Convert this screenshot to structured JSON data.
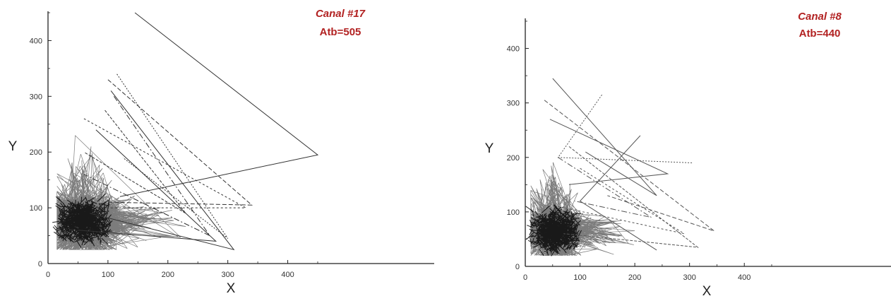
{
  "colors": {
    "annotation": "#b22222",
    "ink": "#111111"
  },
  "chart_data": [
    {
      "type": "line",
      "title": "Canal #17",
      "subtitle": "Atb=505",
      "xlabel": "X",
      "ylabel": "Y",
      "xlim": [
        0,
        450
      ],
      "ylim": [
        0,
        450
      ],
      "xticks": [
        "0",
        "100",
        "200",
        "300",
        "400"
      ],
      "yticks": [
        "0",
        "100",
        "200",
        "300",
        "400"
      ],
      "grid": false,
      "dense_cluster": {
        "x_range": [
          15,
          230
        ],
        "y_range": [
          25,
          270
        ],
        "center": [
          60,
          75
        ],
        "segments": 2600
      },
      "series": [
        {
          "x": [
            145,
            450,
            120
          ],
          "y": [
            450,
            195,
            120
          ]
        },
        {
          "x": [
            100,
            340,
            100
          ],
          "y": [
            330,
            105,
            110
          ]
        },
        {
          "x": [
            115,
            300,
            125
          ],
          "y": [
            340,
            45,
            190
          ]
        },
        {
          "x": [
            110,
            270,
            60
          ],
          "y": [
            300,
            50,
            160
          ]
        },
        {
          "x": [
            105,
            310,
            70
          ],
          "y": [
            310,
            25,
            90
          ]
        },
        {
          "x": [
            95,
            230,
            60
          ],
          "y": [
            275,
            90,
            200
          ]
        },
        {
          "x": [
            80,
            280,
            50
          ],
          "y": [
            240,
            40,
            60
          ]
        },
        {
          "x": [
            60,
            330,
            80
          ],
          "y": [
            260,
            100,
            100
          ]
        }
      ]
    },
    {
      "type": "line",
      "title": "Canal #8",
      "subtitle": "Atb=440",
      "xlabel": "X",
      "ylabel": "Y",
      "xlim": [
        0,
        450
      ],
      "ylim": [
        0,
        450
      ],
      "xticks": [
        "0",
        "100",
        "200",
        "300",
        "400"
      ],
      "yticks": [
        "0",
        "100",
        "200",
        "300",
        "400"
      ],
      "grid": false,
      "dense_cluster": {
        "x_range": [
          10,
          200
        ],
        "y_range": [
          20,
          240
        ],
        "center": [
          55,
          65
        ],
        "segments": 2300
      },
      "series": [
        {
          "x": [
            50,
            240,
            110
          ],
          "y": [
            345,
            130,
            210
          ]
        },
        {
          "x": [
            35,
            345,
            150
          ],
          "y": [
            305,
            65,
            130
          ]
        },
        {
          "x": [
            140,
            60,
            305
          ],
          "y": [
            315,
            200,
            190
          ]
        },
        {
          "x": [
            60,
            230,
            90
          ],
          "y": [
            200,
            90,
            120
          ]
        },
        {
          "x": [
            210,
            100,
            240
          ],
          "y": [
            240,
            120,
            30
          ]
        },
        {
          "x": [
            80,
            315,
            70
          ],
          "y": [
            220,
            35,
            60
          ]
        },
        {
          "x": [
            45,
            260,
            80
          ],
          "y": [
            270,
            170,
            150
          ]
        },
        {
          "x": [
            100,
            290,
            60
          ],
          "y": [
            180,
            60,
            110
          ]
        }
      ]
    }
  ]
}
